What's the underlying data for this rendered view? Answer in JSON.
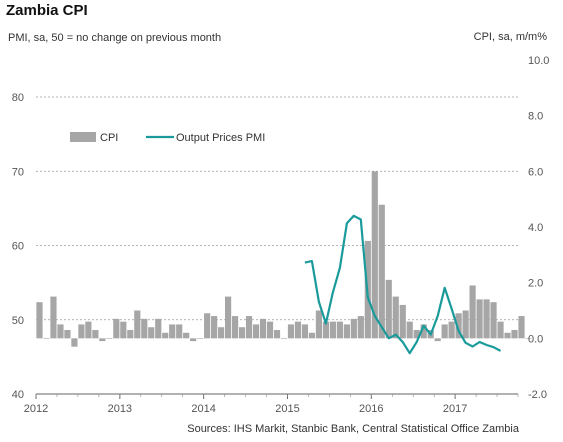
{
  "title": "Zambia  CPI",
  "subtitle_left": "PMI, sa, 50 = no change on previous month",
  "subtitle_right": "CPI, sa, m/m%",
  "source": "Sources: IHS Markit, Stanbic Bank, Central Statistical Office Zambia",
  "colors": {
    "bar": "#a6a6a6",
    "line": "#1a9a9a",
    "grid": "#9a9a9a"
  },
  "chart_data": {
    "type": "bar",
    "x_axis": {
      "labels": [
        "2012",
        "2013",
        "2014",
        "2015",
        "2016",
        "2017"
      ],
      "start": 2012.0,
      "end": 2017.75
    },
    "y_left": {
      "min": 40,
      "max": 80,
      "ticks": [
        "40",
        "50",
        "60",
        "70",
        "80"
      ]
    },
    "y_right": {
      "min": -2.0,
      "max": 10.0,
      "ticks": [
        "-2.0",
        "0.0",
        "2.0",
        "4.0",
        "6.0",
        "8.0",
        "10.0"
      ]
    },
    "grid": true,
    "legend": {
      "placement": "top-left",
      "position": "inside"
    },
    "series": [
      {
        "name": "CPI",
        "type": "bar",
        "axis": "right",
        "start": "2012-01",
        "values": [
          1.3,
          0.0,
          1.5,
          0.5,
          0.3,
          -0.3,
          0.5,
          0.6,
          0.3,
          -0.1,
          0.0,
          0.7,
          0.6,
          0.3,
          1.0,
          0.7,
          0.4,
          0.7,
          0.2,
          0.5,
          0.5,
          0.2,
          -0.1,
          0.0,
          0.9,
          0.8,
          0.4,
          1.5,
          0.8,
          0.4,
          0.8,
          0.5,
          0.7,
          0.6,
          0.3,
          0.0,
          0.5,
          0.6,
          0.5,
          0.2,
          1.0,
          0.6,
          0.6,
          0.6,
          0.5,
          0.7,
          0.8,
          3.5,
          6.0,
          4.8,
          2.1,
          1.5,
          1.2,
          0.6,
          0.3,
          0.5,
          0.3,
          -0.1,
          0.5,
          0.6,
          0.9,
          1.0,
          1.9,
          1.4,
          1.4,
          1.3,
          0.6,
          0.2,
          0.3,
          0.8,
          0.0
        ]
      },
      {
        "name": "Output Prices PMI",
        "type": "line",
        "axis": "left",
        "start": "2015-03",
        "values": [
          57.7,
          57.9,
          52.4,
          49.5,
          53.7,
          57.0,
          63.0,
          64.0,
          63.5,
          53.0,
          50.5,
          49.0,
          47.5,
          48.0,
          47.0,
          45.5,
          47.0,
          49.2,
          48.0,
          50.5,
          54.3,
          51.5,
          48.5,
          46.9,
          46.4,
          47.0,
          46.6,
          46.3,
          45.8
        ]
      }
    ]
  }
}
